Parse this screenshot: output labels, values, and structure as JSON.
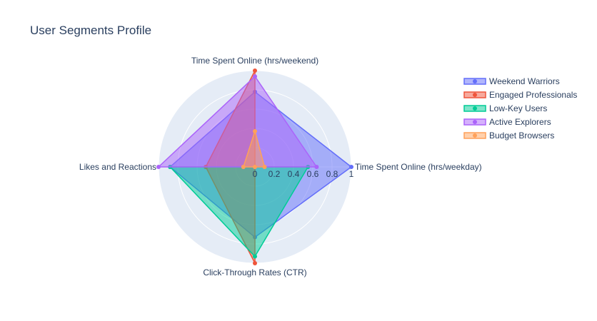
{
  "chart_data": {
    "type": "radar",
    "title": "User Segments Profile",
    "axes": [
      "Time Spent Online (hrs/weekday)",
      "Time Spent Online (hrs/weekend)",
      "Likes and Reactions",
      "Click-Through Rates (CTR)"
    ],
    "radial_range": [
      0,
      1
    ],
    "radial_ticks": [
      "0",
      "0.2",
      "0.4",
      "0.6",
      "0.8",
      "1"
    ],
    "grid": true,
    "legend_position": "top-right",
    "series": [
      {
        "name": "Weekend Warriors",
        "color": "#636efa",
        "values": [
          1.0,
          0.78,
          0.88,
          0.73
        ]
      },
      {
        "name": "Engaged Professionals",
        "color": "#ef553b",
        "values": [
          0.0,
          1.0,
          0.51,
          1.0
        ]
      },
      {
        "name": "Low-Key Users",
        "color": "#00cc96",
        "values": [
          0.55,
          0.0,
          0.88,
          0.93
        ]
      },
      {
        "name": "Active Explorers",
        "color": "#ab63fa",
        "values": [
          0.64,
          0.94,
          1.0,
          0.0
        ]
      },
      {
        "name": "Budget Browsers",
        "color": "#ffa15a",
        "values": [
          0.1,
          0.37,
          0.12,
          0.0
        ]
      }
    ]
  }
}
